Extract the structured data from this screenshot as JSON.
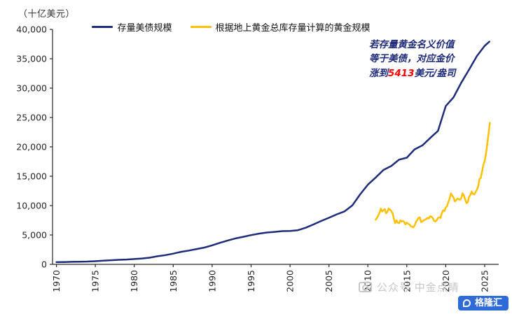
{
  "watermark": {
    "text": "公众号 中金点睛"
  },
  "logo": {
    "text": "格隆汇",
    "background": "#2F6BD8"
  },
  "chart_data": {
    "type": "line",
    "title": "",
    "ylabel": "（十亿美元）",
    "xlabel": "",
    "grid": false,
    "legend_position": "top-center",
    "xlim": [
      1969.5,
      2026.8
    ],
    "ylim": [
      0,
      40000
    ],
    "yticks": [
      0,
      5000,
      10000,
      15000,
      20000,
      25000,
      30000,
      35000,
      40000
    ],
    "xticks": [
      1970,
      1975,
      1980,
      1985,
      1990,
      1995,
      2000,
      2005,
      2010,
      2015,
      2020,
      2025
    ],
    "axis_color": "#262626",
    "annotation": {
      "lines": [
        "若存量黄金名义价值",
        "等于美债，对应金价"
      ],
      "line3_pre": "涨到",
      "value": "5413",
      "line3_post": "美元/盎司",
      "color": "#1F2C7C",
      "value_color": "#FF0000"
    },
    "series": [
      {
        "name": "存量美债规模",
        "color": "#1F2C7C",
        "x": [
          1970,
          1971,
          1972,
          1973,
          1974,
          1975,
          1976,
          1977,
          1978,
          1979,
          1980,
          1981,
          1982,
          1983,
          1984,
          1985,
          1986,
          1987,
          1988,
          1989,
          1990,
          1991,
          1992,
          1993,
          1994,
          1995,
          1996,
          1997,
          1998,
          1999,
          2000,
          2001,
          2002,
          2003,
          2004,
          2005,
          2006,
          2007,
          2008,
          2009,
          2010,
          2011,
          2012,
          2013,
          2014,
          2015,
          2016,
          2017,
          2018,
          2019,
          2020,
          2021,
          2022,
          2023,
          2024,
          2025,
          2025.6
        ],
        "y": [
          371,
          398,
          427,
          458,
          475,
          533,
          620,
          699,
          772,
          827,
          908,
          998,
          1142,
          1377,
          1572,
          1823,
          2125,
          2350,
          2602,
          2857,
          3233,
          3665,
          4065,
          4411,
          4693,
          4974,
          5225,
          5413,
          5526,
          5656,
          5674,
          5807,
          6228,
          6783,
          7379,
          7933,
          8507,
          9008,
          10025,
          11910,
          13562,
          14790,
          16066,
          16738,
          17824,
          18151,
          19573,
          20245,
          21516,
          22719,
          26945,
          28429,
          30929,
          33167,
          35460,
          37200,
          37900
        ]
      },
      {
        "name": "根据地上黄金总库存量计算的黄金规模",
        "color": "#FFC000",
        "x": [
          2011.0,
          2011.17,
          2011.33,
          2011.5,
          2011.67,
          2011.83,
          2012.0,
          2012.17,
          2012.33,
          2012.5,
          2012.67,
          2012.83,
          2013.0,
          2013.17,
          2013.33,
          2013.5,
          2013.67,
          2013.83,
          2014.0,
          2014.17,
          2014.33,
          2014.5,
          2014.67,
          2014.83,
          2015.0,
          2015.17,
          2015.33,
          2015.5,
          2015.67,
          2015.83,
          2016.0,
          2016.17,
          2016.33,
          2016.5,
          2016.67,
          2016.83,
          2017.0,
          2017.17,
          2017.33,
          2017.5,
          2017.67,
          2017.83,
          2018.0,
          2018.17,
          2018.33,
          2018.5,
          2018.67,
          2018.83,
          2019.0,
          2019.17,
          2019.33,
          2019.5,
          2019.67,
          2019.83,
          2020.0,
          2020.17,
          2020.33,
          2020.5,
          2020.67,
          2020.83,
          2021.0,
          2021.17,
          2021.33,
          2021.5,
          2021.67,
          2021.83,
          2022.0,
          2022.17,
          2022.33,
          2022.5,
          2022.67,
          2022.83,
          2023.0,
          2023.17,
          2023.33,
          2023.5,
          2023.67,
          2023.83,
          2024.0,
          2024.17,
          2024.33,
          2024.5,
          2024.67,
          2024.83,
          2025.0,
          2025.17,
          2025.33,
          2025.5,
          2025.67
        ],
        "y": [
          7600,
          7900,
          8300,
          8800,
          9500,
          9000,
          9200,
          9400,
          8700,
          8900,
          9500,
          9300,
          9100,
          8700,
          7800,
          7000,
          7500,
          7100,
          7000,
          7500,
          7300,
          7400,
          7200,
          6800,
          7100,
          6900,
          6800,
          6500,
          6400,
          6300,
          6600,
          7200,
          7500,
          7900,
          8000,
          7200,
          7300,
          7500,
          7600,
          7700,
          7900,
          7800,
          8200,
          8100,
          7900,
          7400,
          7300,
          7500,
          7900,
          8000,
          7900,
          8700,
          9200,
          9100,
          9700,
          9900,
          10600,
          11200,
          12100,
          11700,
          11400,
          10700,
          10900,
          11200,
          11100,
          11000,
          11300,
          12100,
          11700,
          11000,
          10400,
          10600,
          11500,
          11800,
          12400,
          12000,
          11900,
          12300,
          12700,
          13300,
          14500,
          14700,
          15800,
          16900,
          17600,
          18900,
          20500,
          22200,
          24100
        ]
      }
    ]
  }
}
